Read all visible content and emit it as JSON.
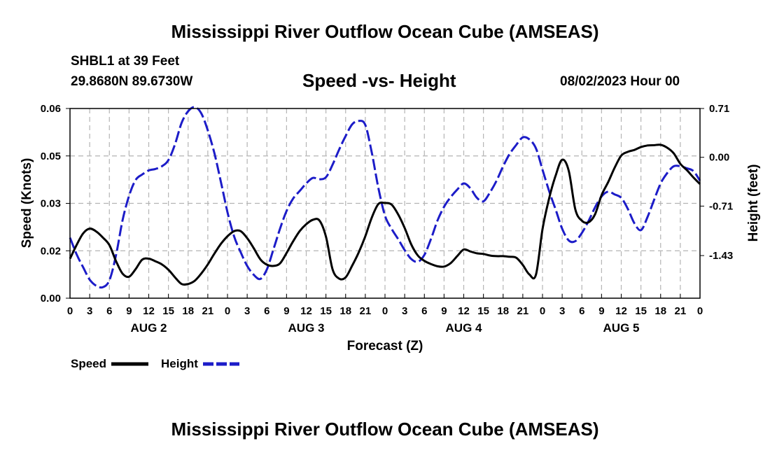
{
  "title": "Mississippi River Outflow Ocean Cube (AMSEAS)",
  "station": "SHBL1 at 39 Feet",
  "coords": "29.8680N  89.6730W",
  "subtitle": "Speed -vs- Height",
  "datestamp": "08/02/2023 Hour 00",
  "bottom_title": "Mississippi River Outflow Ocean Cube (AMSEAS)",
  "chart_data": {
    "type": "line",
    "xlabel": "Forecast (Z)",
    "ylabel_left": "Speed (Knots)",
    "ylabel_right": "Height (feet)",
    "xlim": [
      0,
      96
    ],
    "ylim_left": [
      0.0,
      0.06
    ],
    "ylim_right": [
      -2.05,
      0.71
    ],
    "y_ticks_left": [
      {
        "value": 0.0,
        "label": "0.00"
      },
      {
        "value": 0.015,
        "label": "0.02"
      },
      {
        "value": 0.03,
        "label": "0.03"
      },
      {
        "value": 0.045,
        "label": "0.05"
      },
      {
        "value": 0.06,
        "label": "0.06"
      }
    ],
    "y_ticks_right": [
      {
        "value": 0.71,
        "label": "0.71"
      },
      {
        "value": 0.0,
        "label": "0.00"
      },
      {
        "value": -0.71,
        "label": "-0.71"
      },
      {
        "value": -1.43,
        "label": "-1.43"
      }
    ],
    "x_ticks": [
      {
        "value": 0,
        "label": "0"
      },
      {
        "value": 3,
        "label": "3"
      },
      {
        "value": 6,
        "label": "6"
      },
      {
        "value": 9,
        "label": "9"
      },
      {
        "value": 12,
        "label": "12"
      },
      {
        "value": 15,
        "label": "15"
      },
      {
        "value": 18,
        "label": "18"
      },
      {
        "value": 21,
        "label": "21"
      },
      {
        "value": 24,
        "label": "0"
      },
      {
        "value": 27,
        "label": "3"
      },
      {
        "value": 30,
        "label": "6"
      },
      {
        "value": 33,
        "label": "9"
      },
      {
        "value": 36,
        "label": "12"
      },
      {
        "value": 39,
        "label": "15"
      },
      {
        "value": 42,
        "label": "18"
      },
      {
        "value": 45,
        "label": "21"
      },
      {
        "value": 48,
        "label": "0"
      },
      {
        "value": 51,
        "label": "3"
      },
      {
        "value": 54,
        "label": "6"
      },
      {
        "value": 57,
        "label": "9"
      },
      {
        "value": 60,
        "label": "12"
      },
      {
        "value": 63,
        "label": "15"
      },
      {
        "value": 66,
        "label": "18"
      },
      {
        "value": 69,
        "label": "21"
      },
      {
        "value": 72,
        "label": "0"
      },
      {
        "value": 75,
        "label": "3"
      },
      {
        "value": 78,
        "label": "6"
      },
      {
        "value": 81,
        "label": "9"
      },
      {
        "value": 84,
        "label": "12"
      },
      {
        "value": 87,
        "label": "15"
      },
      {
        "value": 90,
        "label": "18"
      },
      {
        "value": 93,
        "label": "21"
      },
      {
        "value": 96,
        "label": "0"
      }
    ],
    "day_labels": [
      {
        "value": 12,
        "label": "AUG 2"
      },
      {
        "value": 36,
        "label": "AUG 3"
      },
      {
        "value": 60,
        "label": "AUG 4"
      },
      {
        "value": 84,
        "label": "AUG 5"
      }
    ],
    "grid": true,
    "legend_position": "bottom-left",
    "series": [
      {
        "name": "Speed",
        "axis": "left",
        "color": "#000000",
        "dash": "solid",
        "x": [
          0,
          1,
          2,
          3,
          4,
          5,
          6,
          7,
          8,
          9,
          10,
          11,
          12,
          13,
          14,
          15,
          16,
          17,
          18,
          19,
          20,
          21,
          22,
          23,
          24,
          25,
          26,
          27,
          28,
          29,
          30,
          31,
          32,
          33,
          34,
          35,
          36,
          37,
          38,
          39,
          40,
          41,
          42,
          43,
          44,
          45,
          46,
          47,
          48,
          49,
          50,
          51,
          52,
          53,
          54,
          55,
          56,
          57,
          58,
          59,
          60,
          61,
          62,
          63,
          64,
          65,
          66,
          67,
          68,
          69,
          70,
          71,
          72,
          73,
          74,
          75,
          76,
          77,
          78,
          79,
          80,
          81,
          82,
          83,
          84,
          85,
          86,
          87,
          88,
          89,
          90,
          91,
          92,
          93,
          94,
          95,
          96
        ],
        "y": [
          0.0125,
          0.0168,
          0.0205,
          0.022,
          0.0211,
          0.0192,
          0.0168,
          0.0118,
          0.0078,
          0.0068,
          0.0092,
          0.0122,
          0.0125,
          0.0117,
          0.0107,
          0.009,
          0.0066,
          0.0045,
          0.0045,
          0.0055,
          0.0078,
          0.0107,
          0.0141,
          0.0172,
          0.0196,
          0.0212,
          0.0212,
          0.019,
          0.0158,
          0.0123,
          0.0106,
          0.0102,
          0.011,
          0.0143,
          0.018,
          0.0212,
          0.0234,
          0.0248,
          0.0246,
          0.0195,
          0.0092,
          0.0062,
          0.0066,
          0.0103,
          0.0145,
          0.0196,
          0.0256,
          0.0298,
          0.0301,
          0.0296,
          0.0265,
          0.0222,
          0.017,
          0.0135,
          0.0118,
          0.0108,
          0.0101,
          0.01,
          0.0111,
          0.0133,
          0.0154,
          0.0148,
          0.0142,
          0.014,
          0.0135,
          0.0133,
          0.0133,
          0.0131,
          0.0128,
          0.0105,
          0.0075,
          0.0074,
          0.0218,
          0.0315,
          0.0388,
          0.0438,
          0.0403,
          0.0281,
          0.0245,
          0.024,
          0.0265,
          0.0326,
          0.0367,
          0.0413,
          0.0451,
          0.0463,
          0.0469,
          0.0478,
          0.0483,
          0.0484,
          0.0485,
          0.0476,
          0.0458,
          0.0425,
          0.0405,
          0.0382,
          0.0361
        ]
      },
      {
        "name": "Height",
        "axis": "right",
        "color": "#1c1cc8",
        "dash": "dashed",
        "x": [
          0,
          1,
          2,
          3,
          4,
          5,
          6,
          7,
          8,
          9,
          10,
          11,
          12,
          13,
          14,
          15,
          16,
          17,
          18,
          19,
          20,
          21,
          22,
          23,
          24,
          25,
          26,
          27,
          28,
          29,
          30,
          31,
          32,
          33,
          34,
          35,
          36,
          37,
          38,
          39,
          40,
          41,
          42,
          43,
          44,
          45,
          46,
          47,
          48,
          49,
          50,
          51,
          52,
          53,
          54,
          55,
          56,
          57,
          58,
          59,
          60,
          61,
          62,
          63,
          64,
          65,
          66,
          67,
          68,
          69,
          70,
          71,
          72,
          73,
          74,
          75,
          76,
          77,
          78,
          79,
          80,
          81,
          82,
          83,
          84,
          85,
          86,
          87,
          88,
          89,
          90,
          91,
          92,
          93,
          94,
          95,
          96
        ],
        "y": [
          -1.17,
          -1.41,
          -1.6,
          -1.78,
          -1.87,
          -1.89,
          -1.79,
          -1.43,
          -0.92,
          -0.56,
          -0.33,
          -0.25,
          -0.19,
          -0.17,
          -0.13,
          -0.04,
          0.19,
          0.5,
          0.67,
          0.73,
          0.64,
          0.39,
          0.06,
          -0.36,
          -0.8,
          -1.15,
          -1.38,
          -1.58,
          -1.71,
          -1.77,
          -1.63,
          -1.34,
          -1.04,
          -0.78,
          -0.6,
          -0.49,
          -0.38,
          -0.3,
          -0.32,
          -0.29,
          -0.11,
          0.11,
          0.31,
          0.48,
          0.53,
          0.47,
          0.06,
          -0.45,
          -0.85,
          -1.04,
          -1.19,
          -1.35,
          -1.48,
          -1.52,
          -1.42,
          -1.19,
          -0.92,
          -0.72,
          -0.58,
          -0.47,
          -0.38,
          -0.45,
          -0.59,
          -0.64,
          -0.51,
          -0.34,
          -0.13,
          0.05,
          0.18,
          0.29,
          0.26,
          0.13,
          -0.18,
          -0.49,
          -0.76,
          -1.04,
          -1.21,
          -1.22,
          -1.1,
          -0.93,
          -0.73,
          -0.57,
          -0.5,
          -0.54,
          -0.59,
          -0.75,
          -0.96,
          -1.06,
          -0.87,
          -0.62,
          -0.38,
          -0.23,
          -0.13,
          -0.13,
          -0.16,
          -0.2,
          -0.34
        ]
      }
    ]
  }
}
